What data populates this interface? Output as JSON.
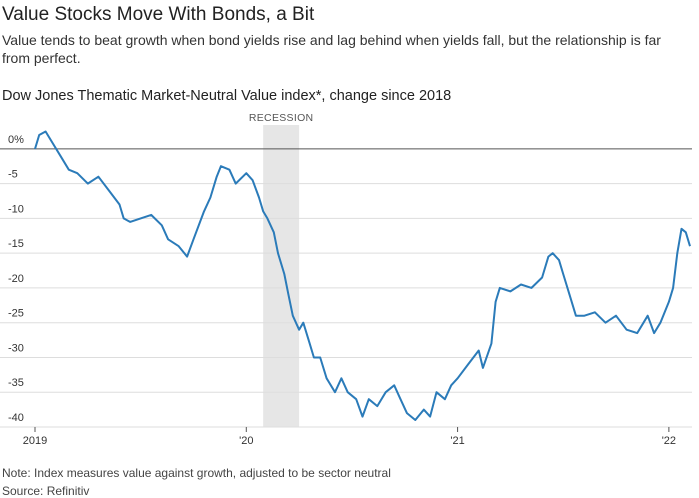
{
  "title": "Value Stocks Move With Bonds, a Bit",
  "subtitle": "Value tends to beat growth when bond yields rise and lag behind when yields fall, but the relationship is far from perfect.",
  "note": "Note: Index measures value against growth, adjusted to be sector neutral",
  "source": "Source: Refinitiv",
  "chart_data": {
    "type": "line",
    "title": "Dow Jones Thematic Market-Neutral Value index*, change since 2018",
    "annotations": [
      {
        "label": "RECESSION",
        "x": [
          2020.08,
          2020.25
        ]
      }
    ],
    "xlim": [
      2019,
      2022.1
    ],
    "xticks": [
      {
        "value": 2019,
        "label": "2019"
      },
      {
        "value": 2020,
        "label": "'20"
      },
      {
        "value": 2021,
        "label": "'21"
      },
      {
        "value": 2022,
        "label": "'22"
      }
    ],
    "ylim": [
      -40,
      3
    ],
    "yticks": [
      {
        "value": 0,
        "label": "0%"
      },
      -5,
      -10,
      -15,
      -20,
      -25,
      -30,
      -35,
      -40
    ],
    "grid": true,
    "series": [
      {
        "name": "Dow Jones Thematic Market-Neutral Value index",
        "color": "#2b7bb9",
        "x": [
          2019.0,
          2019.02,
          2019.05,
          2019.08,
          2019.12,
          2019.16,
          2019.2,
          2019.25,
          2019.3,
          2019.35,
          2019.4,
          2019.42,
          2019.45,
          2019.5,
          2019.55,
          2019.6,
          2019.63,
          2019.68,
          2019.72,
          2019.75,
          2019.8,
          2019.83,
          2019.86,
          2019.88,
          2019.92,
          2019.95,
          2020.0,
          2020.03,
          2020.06,
          2020.08,
          2020.1,
          2020.13,
          2020.15,
          2020.18,
          2020.2,
          2020.22,
          2020.25,
          2020.27,
          2020.3,
          2020.32,
          2020.35,
          2020.38,
          2020.42,
          2020.45,
          2020.48,
          2020.52,
          2020.55,
          2020.58,
          2020.62,
          2020.66,
          2020.7,
          2020.73,
          2020.76,
          2020.8,
          2020.84,
          2020.87,
          2020.9,
          2020.94,
          2020.97,
          2021.0,
          2021.05,
          2021.1,
          2021.12,
          2021.16,
          2021.18,
          2021.2,
          2021.25,
          2021.3,
          2021.35,
          2021.4,
          2021.43,
          2021.45,
          2021.48,
          2021.5,
          2021.53,
          2021.56,
          2021.6,
          2021.65,
          2021.7,
          2021.75,
          2021.8,
          2021.85,
          2021.88,
          2021.9,
          2021.93,
          2021.96,
          2022.0,
          2022.02,
          2022.04,
          2022.06,
          2022.08,
          2022.1
        ],
        "values": [
          0,
          2,
          2.5,
          1,
          -1,
          -3,
          -3.5,
          -5,
          -4,
          -6,
          -8,
          -10,
          -10.5,
          -10,
          -9.5,
          -11,
          -13,
          -14,
          -15.5,
          -13,
          -9,
          -7,
          -4,
          -2.5,
          -3,
          -5,
          -3.5,
          -4.5,
          -7,
          -9,
          -10,
          -12,
          -15,
          -18,
          -21,
          -24,
          -26,
          -25,
          -28,
          -30,
          -30,
          -33,
          -35,
          -33,
          -35,
          -36,
          -38.5,
          -36,
          -37,
          -35,
          -34,
          -36,
          -38,
          -39,
          -37.5,
          -38.5,
          -35,
          -36,
          -34,
          -33,
          -31,
          -29,
          -31.5,
          -28,
          -22,
          -20,
          -20.5,
          -19.5,
          -20,
          -18.5,
          -15.5,
          -15,
          -16,
          -18,
          -21,
          -24,
          -24,
          -23.5,
          -25,
          -24,
          -26,
          -26.5,
          -25,
          -24,
          -26.5,
          -25,
          -22,
          -20,
          -15,
          -11.5,
          -12,
          -14
        ]
      }
    ]
  }
}
